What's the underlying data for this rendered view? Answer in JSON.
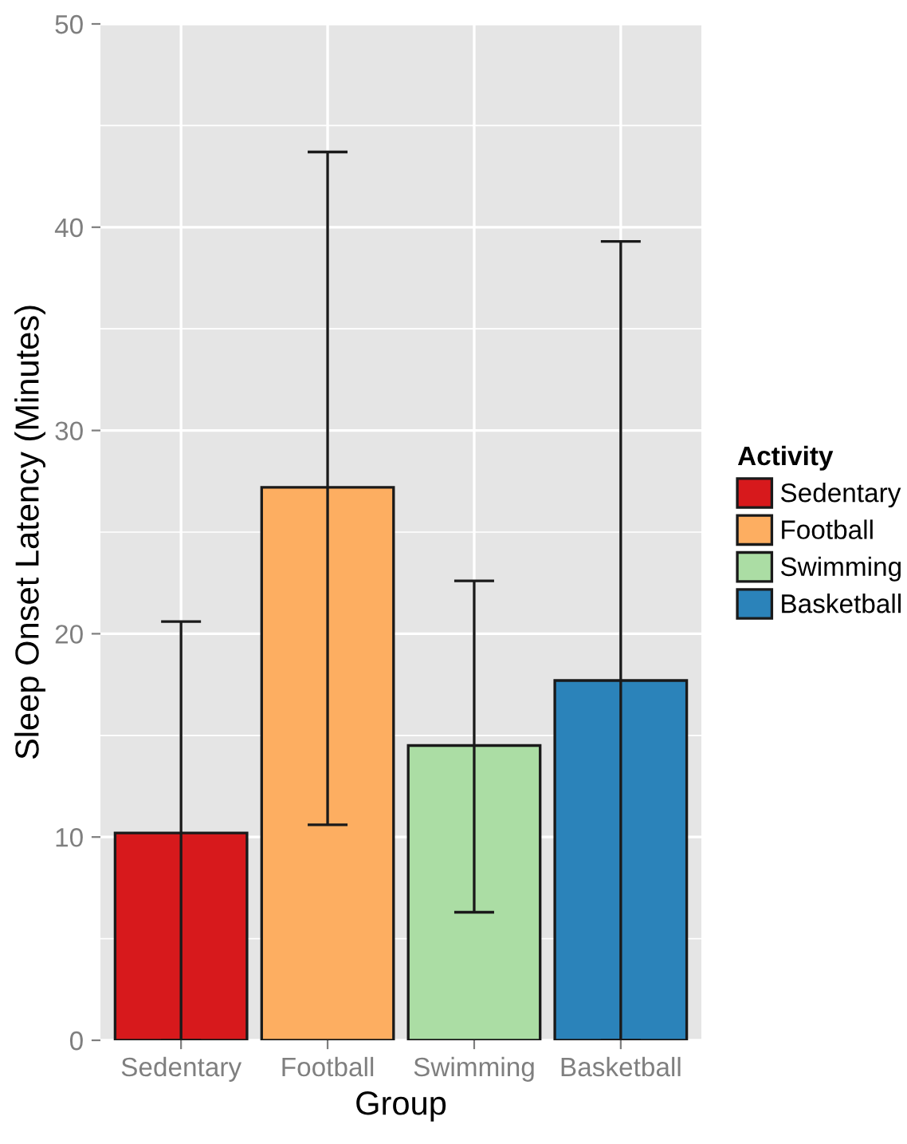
{
  "chart_data": {
    "type": "bar",
    "xlabel": "Group",
    "ylabel": "Sleep Onset Latency (Minutes)",
    "legend_title": "Activity",
    "categories": [
      "Sedentary",
      "Football",
      "Swimming",
      "Basketball"
    ],
    "series": [
      {
        "name": "Sedentary",
        "color": "#d7191c",
        "values": [
          10.2,
          null,
          null,
          null
        ],
        "errors": [
          [
            0,
            20.6
          ],
          null,
          null,
          null
        ]
      },
      {
        "name": "Football",
        "color": "#fdae61",
        "values": [
          null,
          27.2,
          null,
          null
        ],
        "errors": [
          null,
          [
            10.6,
            43.7
          ],
          null,
          null
        ]
      },
      {
        "name": "Swimming",
        "color": "#abdda4",
        "values": [
          null,
          null,
          14.5,
          null
        ],
        "errors": [
          null,
          null,
          [
            6.3,
            22.6
          ],
          null
        ]
      },
      {
        "name": "Basketball",
        "color": "#2b83ba",
        "values": [
          null,
          null,
          null,
          17.7
        ],
        "errors": [
          null,
          null,
          null,
          [
            0,
            39.3
          ]
        ]
      }
    ],
    "ylim": [
      0,
      50
    ],
    "yticks": [
      0,
      10,
      20,
      30,
      40,
      50
    ],
    "grid": true,
    "legend": "right"
  }
}
